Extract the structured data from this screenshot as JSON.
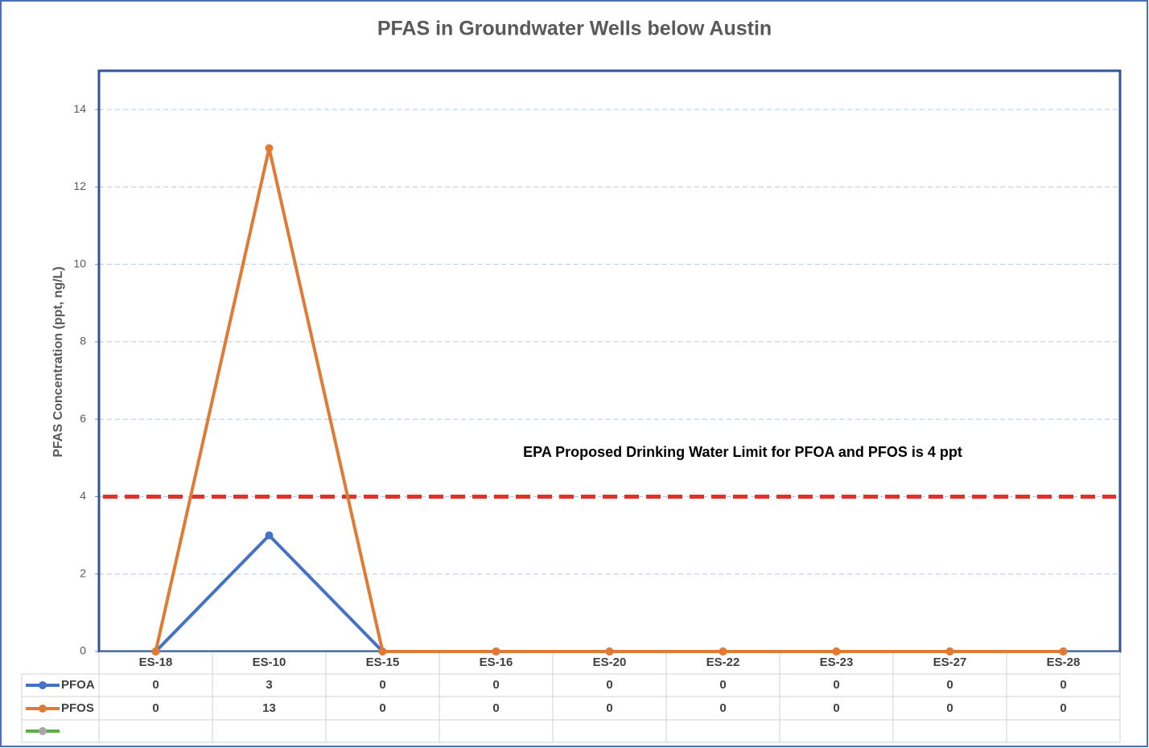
{
  "chart_data": {
    "type": "line",
    "title": "PFAS in Groundwater Wells below Austin",
    "y_label": "PFAS Concentration (ppt, ng/L)",
    "annotation": "EPA Proposed Drinking Water Limit for PFOA and PFOS is  4 ppt",
    "threshold": 4,
    "threshold_color": "#e03027",
    "categories": [
      "ES-18",
      "ES-10",
      "ES-15",
      "ES-16",
      "ES-20",
      "ES-22",
      "ES-23",
      "ES-27",
      "ES-28"
    ],
    "series": [
      {
        "name": "PFOA",
        "color": "#4472c4",
        "values": [
          0,
          3,
          0,
          0,
          0,
          0,
          0,
          0,
          0
        ]
      },
      {
        "name": "PFOS",
        "color": "#e07b35",
        "values": [
          0,
          13,
          0,
          0,
          0,
          0,
          0,
          0,
          0
        ]
      }
    ],
    "ylim": [
      0,
      15
    ],
    "yticks": [
      0,
      2,
      4,
      6,
      8,
      10,
      12,
      14
    ],
    "grid": true
  }
}
